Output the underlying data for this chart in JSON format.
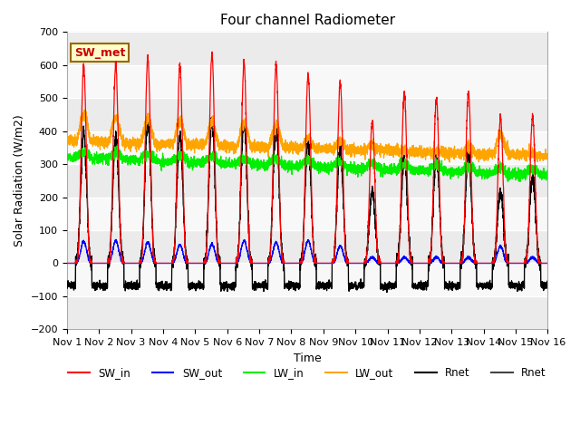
{
  "title": "Four channel Radiometer",
  "xlabel": "Time",
  "ylabel": "Solar Radiation (W/m2)",
  "ylim": [
    -200,
    700
  ],
  "yticks": [
    -200,
    -100,
    0,
    100,
    200,
    300,
    400,
    500,
    600,
    700
  ],
  "num_days": 15,
  "annotation_text": "SW_met",
  "annotation_color": "#CC0000",
  "annotation_bg": "#FFFFCC",
  "annotation_border": "#996600",
  "colors": {
    "SW_in": "#FF0000",
    "SW_out": "#0000FF",
    "LW_in": "#00EE00",
    "LW_out": "#FFA500",
    "Rnet": "#000000"
  },
  "background_light": "#F0F0F0",
  "background_dark": "#E0E0E0",
  "grid_color": "#FFFFFF"
}
